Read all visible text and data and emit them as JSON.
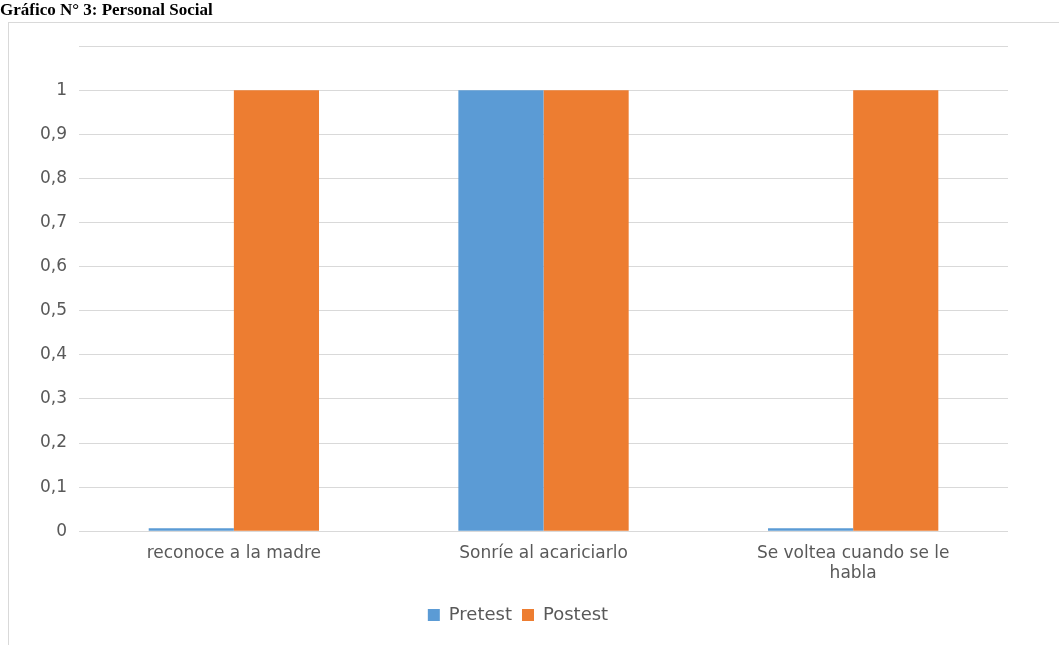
{
  "chart_data": {
    "type": "bar",
    "title": "Gráfico N° 3: Personal Social",
    "categories": [
      "reconoce a la madre",
      "Sonríe al acariciarlo",
      "Se voltea cuando se le habla"
    ],
    "series": [
      {
        "name": "Pretest",
        "color": "#5b9bd5",
        "values": [
          0,
          1,
          0
        ]
      },
      {
        "name": "Postest",
        "color": "#ed7d31",
        "values": [
          1,
          1,
          1
        ]
      }
    ],
    "ylim": [
      0,
      1.1
    ],
    "yticks": [
      {
        "value": 0,
        "label": "0"
      },
      {
        "value": 0.1,
        "label": "0,1"
      },
      {
        "value": 0.2,
        "label": "0,2"
      },
      {
        "value": 0.3,
        "label": "0,3"
      },
      {
        "value": 0.4,
        "label": "0,4"
      },
      {
        "value": 0.5,
        "label": "0,5"
      },
      {
        "value": 0.6,
        "label": "0,6"
      },
      {
        "value": 0.7,
        "label": "0,7"
      },
      {
        "value": 0.8,
        "label": "0,8"
      },
      {
        "value": 0.9,
        "label": "0,9"
      },
      {
        "value": 1,
        "label": "1"
      },
      {
        "value": 1.1,
        "label": null
      }
    ],
    "grid": "y",
    "legend": "bottom"
  }
}
